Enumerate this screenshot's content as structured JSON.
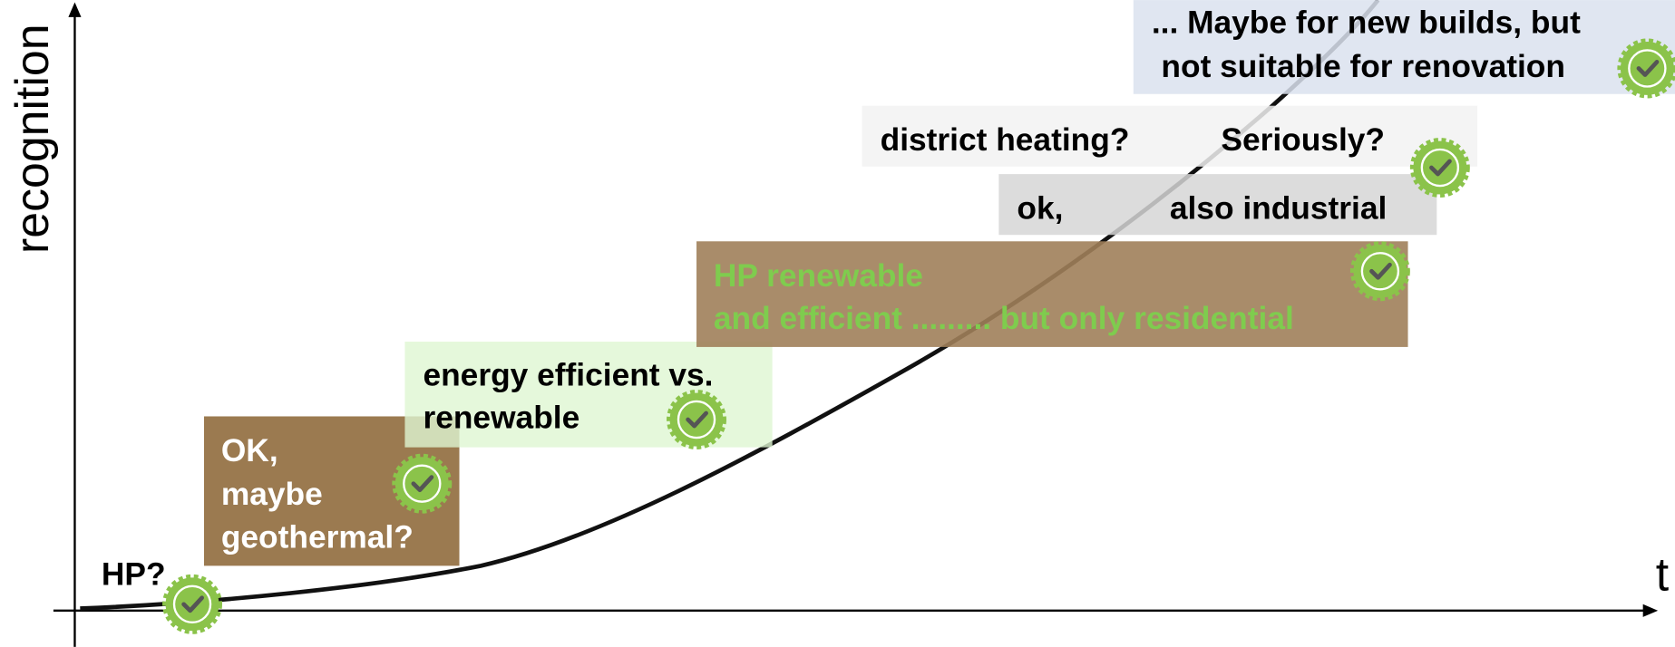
{
  "axes": {
    "y_label": "recognition",
    "x_label": "t"
  },
  "steps": [
    {
      "lines": [
        "HP?"
      ]
    },
    {
      "lines": [
        "OK,",
        "maybe",
        "geothermal?"
      ]
    },
    {
      "lines": [
        "energy efficient vs.",
        "renewable"
      ]
    },
    {
      "lines": [
        "HP renewable",
        "and efficient ......... but only residential"
      ]
    },
    {
      "lines": [
        "ok,",
        "also industrial"
      ]
    },
    {
      "lines": [
        "district heating?",
        "Seriously?"
      ]
    },
    {
      "lines": [
        "... Maybe for new builds, but",
        "not suitable for renovation"
      ]
    }
  ]
}
